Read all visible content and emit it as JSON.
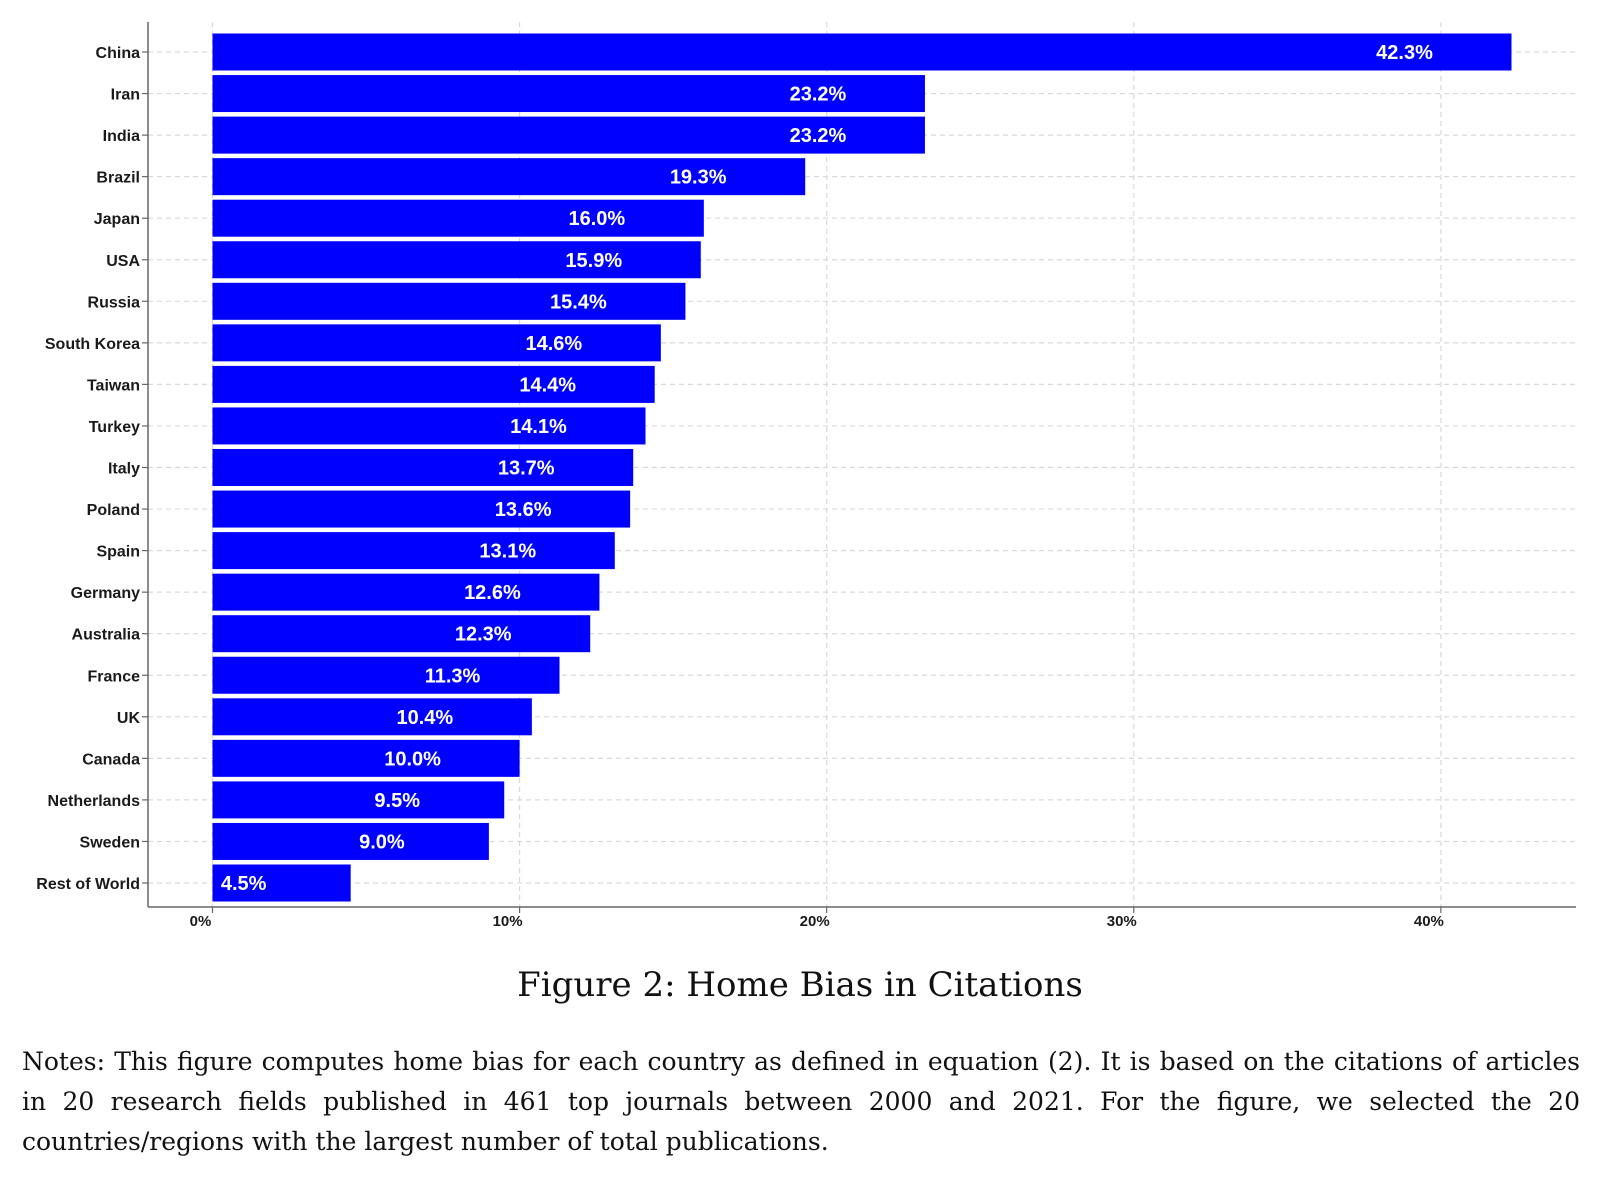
{
  "chart_data": {
    "type": "bar",
    "orientation": "horizontal",
    "categories": [
      "China",
      "Iran",
      "India",
      "Brazil",
      "Japan",
      "USA",
      "Russia",
      "South Korea",
      "Taiwan",
      "Turkey",
      "Italy",
      "Poland",
      "Spain",
      "Germany",
      "Australia",
      "France",
      "UK",
      "Canada",
      "Netherlands",
      "Sweden",
      "Rest of World"
    ],
    "values": [
      42.3,
      23.2,
      23.2,
      19.3,
      16.0,
      15.9,
      15.4,
      14.6,
      14.4,
      14.1,
      13.7,
      13.6,
      13.1,
      12.6,
      12.3,
      11.3,
      10.4,
      10.0,
      9.5,
      9.0,
      4.5
    ],
    "data_labels": [
      "42.3%",
      "23.2%",
      "23.2%",
      "19.3%",
      "16.0%",
      "15.9%",
      "15.4%",
      "14.6%",
      "14.4%",
      "14.1%",
      "13.7%",
      "13.6%",
      "13.1%",
      "12.6%",
      "12.3%",
      "11.3%",
      "10.4%",
      "10.0%",
      "9.5%",
      "9.0%",
      "4.5%"
    ],
    "x_ticks": [
      0,
      10,
      20,
      30,
      40
    ],
    "x_tick_labels": [
      "0%",
      "10%",
      "20%",
      "30%",
      "40%"
    ],
    "xlim": [
      -2.1,
      44.4
    ],
    "bar_color": "#0000ff",
    "grid": true,
    "legend": "none"
  },
  "caption": "Figure 2:  Home Bias in Citations",
  "notes": "Notes:  This figure computes home bias for each country as defined in equation (2).  It is based on the citations of articles in 20 research fields published in 461 top journals between 2000 and 2021. For the figure, we selected the 20 countries/regions with the largest number of total publications."
}
